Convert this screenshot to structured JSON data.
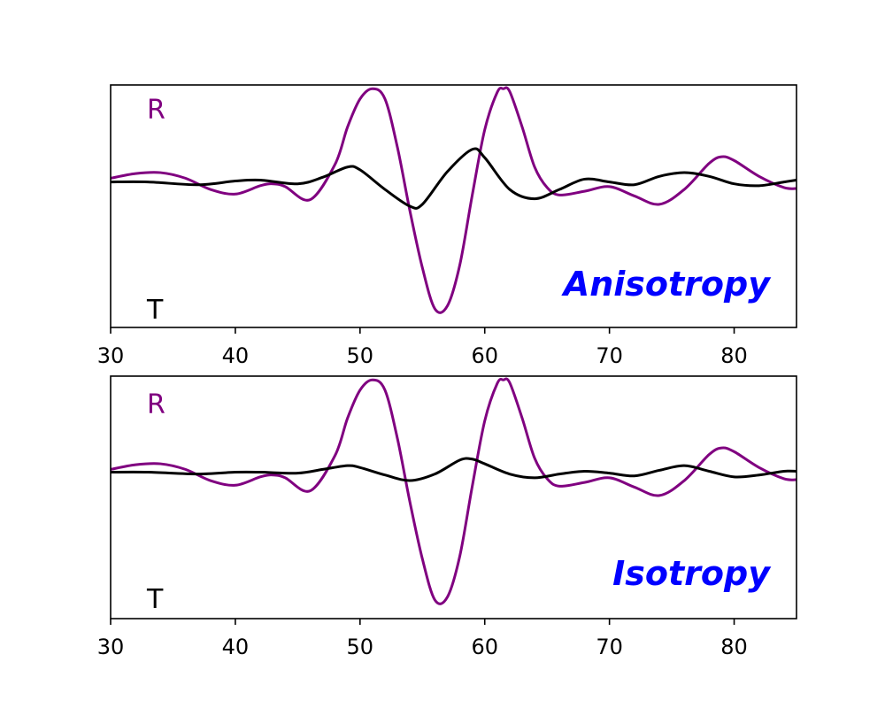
{
  "chart_data": [
    {
      "type": "line",
      "panel_label": "Anisotropy",
      "panel_label_color": "#0000ff",
      "xlim": [
        30,
        85
      ],
      "ylim": [
        -1.6,
        1.0
      ],
      "x_ticks": [
        30,
        40,
        50,
        60,
        70,
        80
      ],
      "y_axis_hidden": true,
      "grid": false,
      "trace_labels": {
        "top": "R",
        "bottom": "T"
      },
      "trace_label_colors": {
        "top": "#800080",
        "bottom": "#000000"
      },
      "series": [
        {
          "color": "#800080",
          "x": [
            30,
            32,
            34,
            36,
            38,
            40,
            42,
            43,
            44,
            46,
            48,
            49,
            50,
            51,
            52,
            53,
            54,
            55,
            56,
            57,
            58,
            59,
            60,
            61,
            61.5,
            62,
            63,
            64,
            65,
            66,
            68,
            70,
            72,
            74,
            76,
            78,
            79,
            80,
            82,
            84,
            85
          ],
          "y": [
            0.0,
            0.05,
            0.06,
            0.0,
            -0.12,
            -0.17,
            -0.08,
            -0.06,
            -0.09,
            -0.23,
            0.15,
            0.55,
            0.85,
            0.96,
            0.85,
            0.33,
            -0.35,
            -0.96,
            -1.4,
            -1.37,
            -0.93,
            -0.18,
            0.52,
            0.92,
            0.96,
            0.93,
            0.55,
            0.12,
            -0.1,
            -0.18,
            -0.14,
            -0.09,
            -0.19,
            -0.28,
            -0.12,
            0.16,
            0.23,
            0.19,
            0.02,
            -0.1,
            -0.11
          ]
        },
        {
          "color": "#000000",
          "x": [
            30,
            33,
            37,
            40,
            42,
            45,
            47,
            49,
            50,
            52,
            54,
            55,
            57,
            59,
            60,
            62,
            64,
            66,
            68,
            70,
            72,
            74,
            76,
            78,
            80,
            82,
            84,
            85
          ],
          "y": [
            -0.04,
            -0.04,
            -0.07,
            -0.03,
            -0.02,
            -0.06,
            0.01,
            0.12,
            0.09,
            -0.12,
            -0.3,
            -0.28,
            0.07,
            0.31,
            0.22,
            -0.12,
            -0.22,
            -0.12,
            -0.01,
            -0.04,
            -0.07,
            0.02,
            0.06,
            0.02,
            -0.06,
            -0.08,
            -0.04,
            -0.02
          ]
        }
      ]
    },
    {
      "type": "line",
      "panel_label": "Isotropy",
      "panel_label_color": "#0000ff",
      "xlim": [
        30,
        85
      ],
      "ylim": [
        -1.6,
        1.0
      ],
      "x_ticks": [
        30,
        40,
        50,
        60,
        70,
        80
      ],
      "y_axis_hidden": true,
      "grid": false,
      "trace_labels": {
        "top": "R",
        "bottom": "T"
      },
      "trace_label_colors": {
        "top": "#800080",
        "bottom": "#000000"
      },
      "series": [
        {
          "color": "#800080",
          "x": [
            30,
            32,
            34,
            36,
            38,
            40,
            42,
            43,
            44,
            46,
            48,
            49,
            50,
            51,
            52,
            53,
            54,
            55,
            56,
            57,
            58,
            59,
            60,
            61,
            61.5,
            62,
            63,
            64,
            65,
            66,
            68,
            70,
            72,
            74,
            76,
            78,
            79,
            80,
            82,
            84,
            85
          ],
          "y": [
            0.0,
            0.05,
            0.06,
            0.0,
            -0.12,
            -0.17,
            -0.08,
            -0.06,
            -0.09,
            -0.23,
            0.15,
            0.55,
            0.85,
            0.96,
            0.85,
            0.33,
            -0.35,
            -0.96,
            -1.4,
            -1.37,
            -0.93,
            -0.18,
            0.52,
            0.92,
            0.96,
            0.93,
            0.55,
            0.12,
            -0.1,
            -0.18,
            -0.14,
            -0.09,
            -0.19,
            -0.28,
            -0.12,
            0.16,
            0.23,
            0.19,
            0.02,
            -0.1,
            -0.11
          ]
        },
        {
          "color": "#000000",
          "x": [
            30,
            33,
            37,
            40,
            42,
            45,
            47,
            49,
            50,
            52,
            54,
            56,
            58,
            59,
            60,
            62,
            64,
            66,
            68,
            70,
            72,
            74,
            76,
            78,
            80,
            82,
            84,
            85
          ],
          "y": [
            -0.03,
            -0.03,
            -0.05,
            -0.03,
            -0.03,
            -0.04,
            0.0,
            0.04,
            0.02,
            -0.06,
            -0.12,
            -0.05,
            0.1,
            0.11,
            0.06,
            -0.05,
            -0.09,
            -0.05,
            -0.02,
            -0.04,
            -0.07,
            -0.01,
            0.04,
            -0.02,
            -0.08,
            -0.06,
            -0.02,
            -0.02
          ]
        }
      ]
    }
  ]
}
